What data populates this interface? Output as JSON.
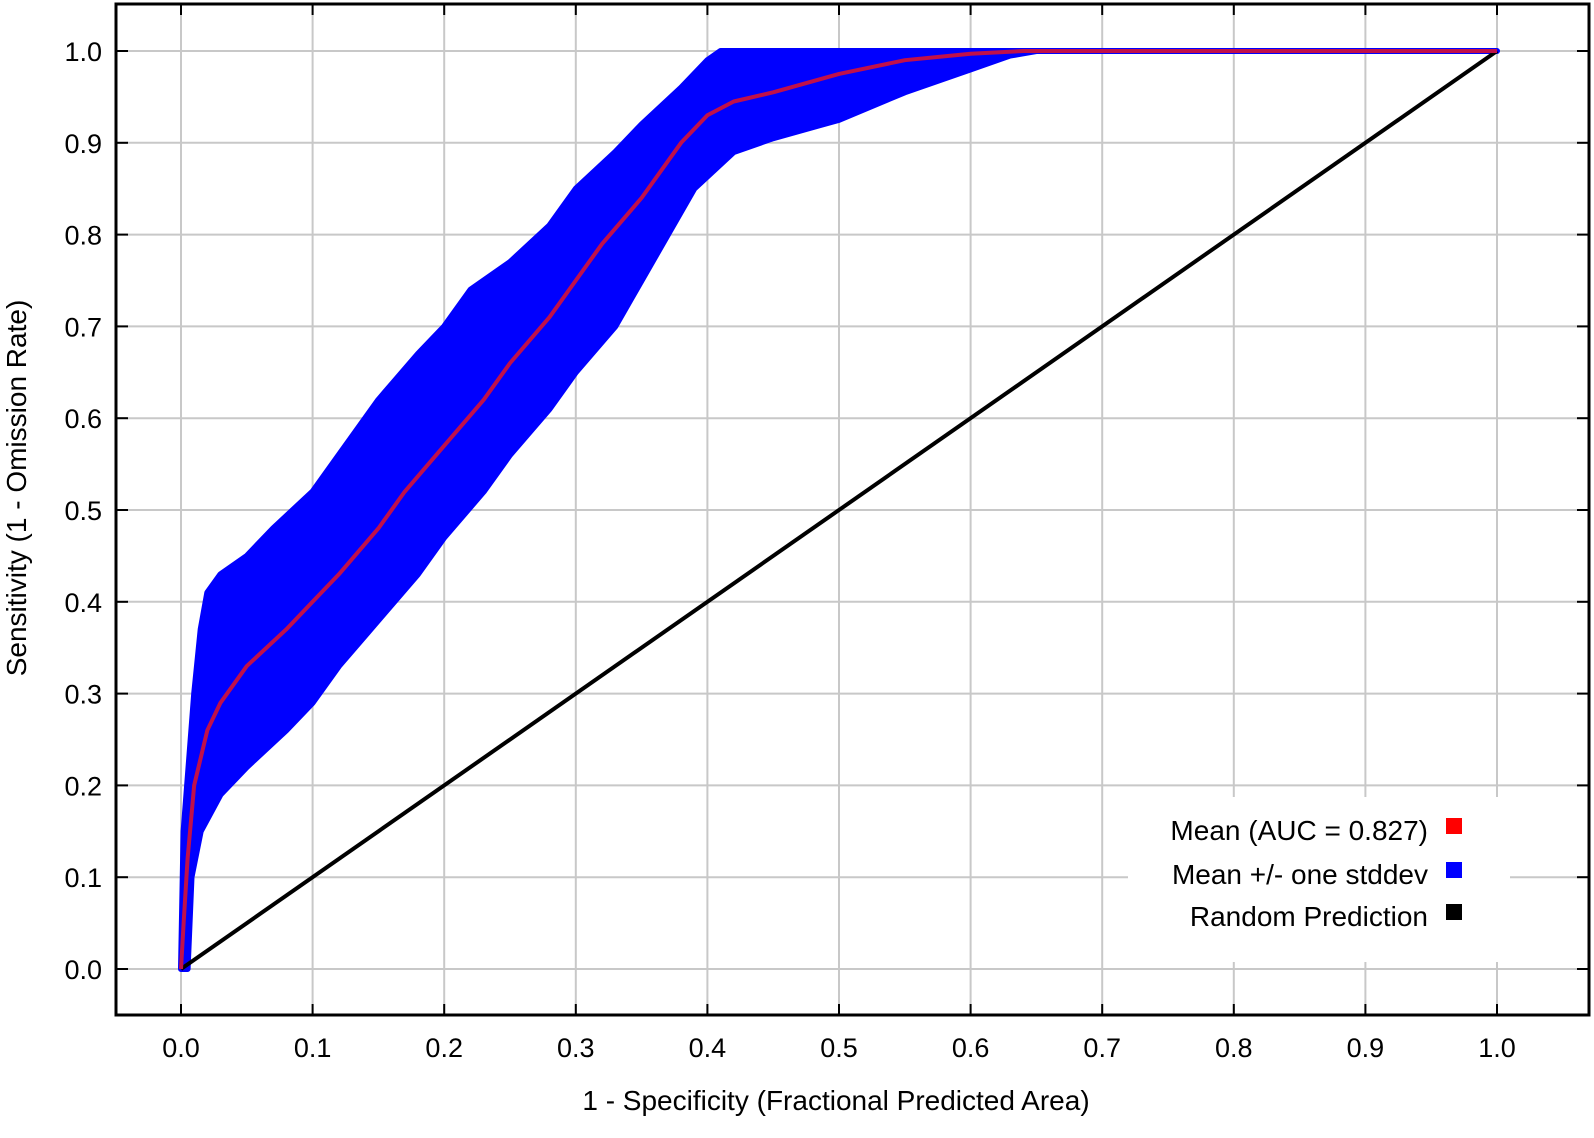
{
  "chart_data": {
    "type": "line",
    "title": "",
    "xlabel": "1 - Specificity (Fractional Predicted Area)",
    "ylabel": "Sensitivity (1 - Omission Rate)",
    "xlim": [
      0.0,
      1.0
    ],
    "ylim": [
      0.0,
      1.0
    ],
    "x_ticks": [
      "0.0",
      "0.1",
      "0.2",
      "0.3",
      "0.4",
      "0.5",
      "0.6",
      "0.7",
      "0.8",
      "0.9",
      "1.0"
    ],
    "y_ticks": [
      "0.0",
      "0.1",
      "0.2",
      "0.3",
      "0.4",
      "0.5",
      "0.6",
      "0.7",
      "0.8",
      "0.9",
      "1.0"
    ],
    "grid": true,
    "legend_position": "lower right",
    "series": [
      {
        "name": "Mean (AUC = 0.827)",
        "kind": "line",
        "color": "#ff0000",
        "auc": 0.827,
        "x": [
          0,
          0.002,
          0.005,
          0.01,
          0.02,
          0.03,
          0.05,
          0.08,
          0.1,
          0.12,
          0.15,
          0.17,
          0.2,
          0.23,
          0.25,
          0.28,
          0.3,
          0.32,
          0.35,
          0.38,
          0.4,
          0.42,
          0.45,
          0.5,
          0.55,
          0.6,
          0.64,
          1.0
        ],
        "y": [
          0,
          0.05,
          0.12,
          0.2,
          0.26,
          0.29,
          0.33,
          0.37,
          0.4,
          0.43,
          0.48,
          0.52,
          0.57,
          0.62,
          0.66,
          0.71,
          0.75,
          0.79,
          0.84,
          0.9,
          0.93,
          0.945,
          0.955,
          0.975,
          0.99,
          0.997,
          1.0,
          1.0
        ]
      },
      {
        "name": "Mean +/- one stddev",
        "kind": "band",
        "color": "#0000ff",
        "upper": {
          "x": [
            0,
            0.002,
            0.01,
            0.015,
            0.02,
            0.03,
            0.05,
            0.07,
            0.1,
            0.12,
            0.15,
            0.18,
            0.2,
            0.22,
            0.25,
            0.28,
            0.3,
            0.33,
            0.35,
            0.38,
            0.4,
            0.41,
            1.0
          ],
          "y": [
            0,
            0.15,
            0.3,
            0.37,
            0.41,
            0.43,
            0.45,
            0.48,
            0.52,
            0.56,
            0.62,
            0.67,
            0.7,
            0.74,
            0.77,
            0.81,
            0.85,
            0.89,
            0.92,
            0.96,
            0.99,
            1.0,
            1.0
          ]
        },
        "lower": {
          "x": [
            0,
            0.005,
            0.008,
            0.015,
            0.03,
            0.05,
            0.08,
            0.1,
            0.12,
            0.15,
            0.18,
            0.2,
            0.23,
            0.25,
            0.28,
            0.3,
            0.33,
            0.35,
            0.37,
            0.39,
            0.42,
            0.45,
            0.5,
            0.55,
            0.6,
            0.63,
            0.65,
            1.0
          ],
          "y": [
            0,
            0,
            0.1,
            0.15,
            0.19,
            0.22,
            0.26,
            0.29,
            0.33,
            0.38,
            0.43,
            0.47,
            0.52,
            0.56,
            0.61,
            0.65,
            0.7,
            0.75,
            0.8,
            0.85,
            0.89,
            0.905,
            0.925,
            0.955,
            0.98,
            0.995,
            1.0,
            1.0
          ]
        }
      },
      {
        "name": "Random Prediction",
        "kind": "line",
        "color": "#000000",
        "x": [
          0,
          1
        ],
        "y": [
          0,
          1
        ]
      }
    ]
  },
  "legend": {
    "items": [
      {
        "label": "Mean (AUC = 0.827)",
        "color": "#ff0000"
      },
      {
        "label": "Mean +/- one stddev",
        "color": "#0000ff"
      },
      {
        "label": "Random Prediction",
        "color": "#000000"
      }
    ]
  },
  "axes": {
    "x_title": "1 - Specificity (Fractional Predicted Area)",
    "y_title": "Sensitivity (1 - Omission Rate)"
  },
  "colors": {
    "grid": "#c8c8c8",
    "frame": "#000000",
    "mean": "#ff0000",
    "mean_over_band": "#c0104a",
    "band": "#0000ff",
    "random": "#000000"
  }
}
